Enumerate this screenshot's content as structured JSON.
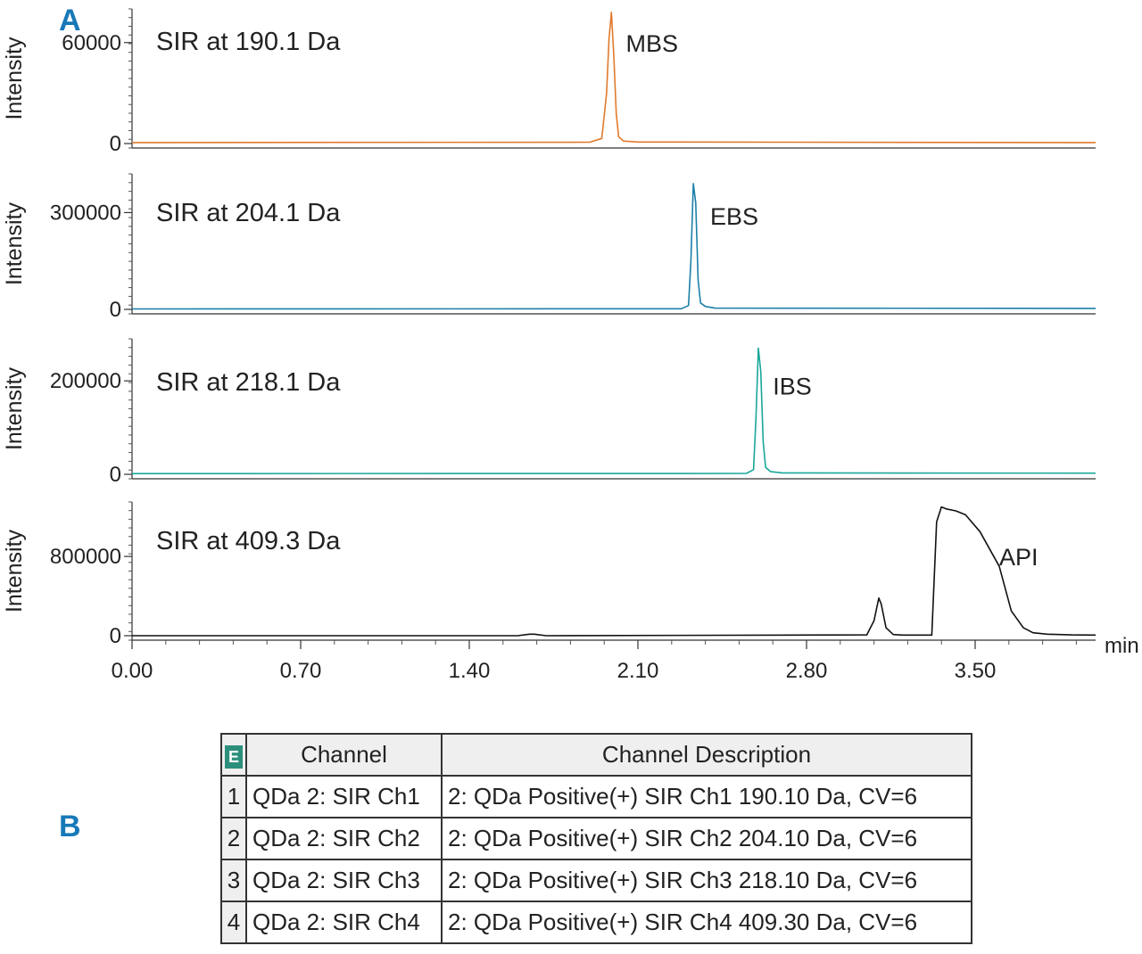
{
  "panel_labels": {
    "a": "A",
    "b": "B"
  },
  "colors": {
    "mbs": "#e07a2c",
    "ebs": "#1c7fa8",
    "ibs": "#1aa79a",
    "api": "#111111",
    "panel_letter": "#1778b8"
  },
  "chart_data": [
    {
      "type": "line",
      "title": "SIR at 190.1 Da",
      "ylabel": "Intensity",
      "xlabel": "min",
      "xlim": [
        0,
        4.0
      ],
      "ylim": [
        0,
        80000
      ],
      "yticks": [
        0,
        60000
      ],
      "ytick_labels": [
        "0",
        "60000"
      ],
      "series": [
        {
          "name": "MBS",
          "color": "#e07a2c",
          "x": [
            0.0,
            1.9,
            1.95,
            1.97,
            1.98,
            1.99,
            2.0,
            2.01,
            2.02,
            2.04,
            2.1,
            4.0
          ],
          "y": [
            600,
            800,
            3000,
            30000,
            62000,
            78000,
            52000,
            18000,
            4000,
            1500,
            900,
            600
          ]
        }
      ],
      "annotations": [
        {
          "text": "MBS",
          "x": 2.05,
          "y": 60000
        }
      ]
    },
    {
      "type": "line",
      "title": "SIR at 204.1 Da",
      "ylabel": "Intensity",
      "xlabel": "min",
      "xlim": [
        0,
        4.0
      ],
      "ylim": [
        0,
        420000
      ],
      "yticks": [
        0,
        300000
      ],
      "ytick_labels": [
        "0",
        "300000"
      ],
      "series": [
        {
          "name": "EBS",
          "color": "#1c7fa8",
          "x": [
            0.0,
            2.28,
            2.31,
            2.32,
            2.33,
            2.34,
            2.35,
            2.36,
            2.38,
            2.42,
            4.0
          ],
          "y": [
            1500,
            2000,
            12000,
            150000,
            390000,
            330000,
            90000,
            20000,
            9000,
            4000,
            3000
          ]
        }
      ],
      "annotations": [
        {
          "text": "EBS",
          "x": 2.4,
          "y": 290000
        }
      ]
    },
    {
      "type": "line",
      "title": "SIR at 218.1 Da",
      "ylabel": "Intensity",
      "xlabel": "min",
      "xlim": [
        0,
        4.0
      ],
      "ylim": [
        0,
        290000
      ],
      "yticks": [
        0,
        200000
      ],
      "ytick_labels": [
        "0",
        "200000"
      ],
      "series": [
        {
          "name": "IBS",
          "color": "#1aa79a",
          "x": [
            0.0,
            2.55,
            2.58,
            2.59,
            2.6,
            2.61,
            2.62,
            2.63,
            2.65,
            2.7,
            4.0
          ],
          "y": [
            1500,
            2000,
            10000,
            120000,
            270000,
            220000,
            70000,
            15000,
            6000,
            3000,
            2500
          ]
        }
      ],
      "annotations": [
        {
          "text": "IBS",
          "x": 2.66,
          "y": 190000
        }
      ]
    },
    {
      "type": "line",
      "title": "SIR at 409.3 Da",
      "ylabel": "Intensity",
      "xlabel": "min",
      "xlim": [
        0,
        4.0
      ],
      "ylim": [
        0,
        1350000
      ],
      "xticks": [
        0.0,
        0.7,
        1.4,
        2.1,
        2.8,
        3.5
      ],
      "xtick_labels": [
        "0.00",
        "0.70",
        "1.40",
        "2.10",
        "2.80",
        "3.50"
      ],
      "yticks": [
        0,
        800000
      ],
      "ytick_labels": [
        "0",
        "800000"
      ],
      "series": [
        {
          "name": "API",
          "color": "#111111",
          "x": [
            0.0,
            1.6,
            1.65,
            1.67,
            1.72,
            3.05,
            3.08,
            3.1,
            3.11,
            3.13,
            3.16,
            3.2,
            3.32,
            3.34,
            3.36,
            3.38,
            3.42,
            3.46,
            3.52,
            3.6,
            3.65,
            3.7,
            3.74,
            3.8,
            3.9,
            4.0
          ],
          "y": [
            0,
            0,
            15000,
            15000,
            0,
            8000,
            150000,
            380000,
            320000,
            80000,
            12000,
            6000,
            6000,
            1150000,
            1300000,
            1280000,
            1260000,
            1220000,
            1050000,
            700000,
            250000,
            80000,
            30000,
            15000,
            8000,
            6000
          ]
        }
      ],
      "annotations": [
        {
          "text": "API",
          "x": 3.6,
          "y": 800000
        }
      ]
    }
  ],
  "table": {
    "header_icon": "E",
    "columns": [
      "Channel",
      "Channel Description"
    ],
    "rows": [
      {
        "index": "1",
        "channel": "QDa 2: SIR Ch1",
        "description": "2: QDa Positive(+) SIR Ch1 190.10 Da, CV=6"
      },
      {
        "index": "2",
        "channel": "QDa 2: SIR Ch2",
        "description": "2: QDa Positive(+) SIR Ch2 204.10 Da, CV=6"
      },
      {
        "index": "3",
        "channel": "QDa 2: SIR Ch3",
        "description": "2: QDa Positive(+) SIR Ch3 218.10 Da, CV=6"
      },
      {
        "index": "4",
        "channel": "QDa 2: SIR Ch4",
        "description": "2: QDa Positive(+) SIR Ch4 409.30 Da, CV=6"
      }
    ]
  }
}
